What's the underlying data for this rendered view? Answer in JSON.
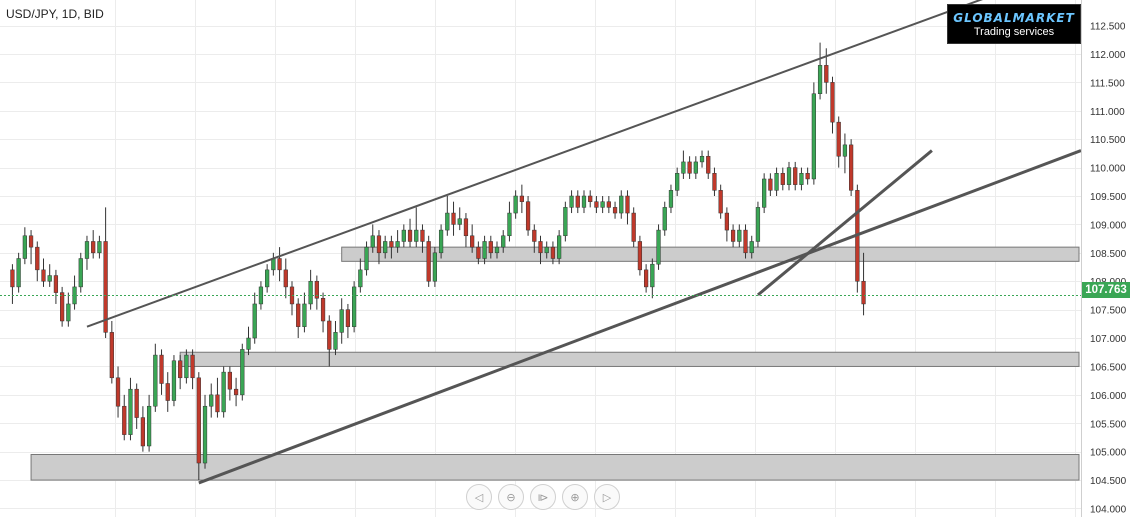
{
  "header": {
    "symbol": "USD/JPY, 1D, BID"
  },
  "logo": {
    "brand": "GLOBALMARKET",
    "tagline": "Trading services"
  },
  "price_label": "107.763",
  "nav": {
    "icons": [
      "scroll-left-icon",
      "zoom-out-icon",
      "reset-icon",
      "zoom-in-icon",
      "scroll-right-icon"
    ],
    "glyphs": [
      "◁",
      "⊖",
      "⧐",
      "⊕",
      "▷"
    ]
  },
  "colors": {
    "up": "#3aa655",
    "down": "#c0392b",
    "grid": "#ececec",
    "zone_fill": "#cccccc",
    "trendline": "#555555",
    "price_line": "#3aa655"
  },
  "chart_data": {
    "type": "candlestick",
    "title": "",
    "y_axis": {
      "ticks": [
        "104.000",
        "104.500",
        "105.000",
        "105.500",
        "106.000",
        "106.500",
        "107.000",
        "107.500",
        "108.000",
        "108.500",
        "109.000",
        "109.500",
        "110.000",
        "110.500",
        "111.000",
        "111.500",
        "112.000",
        "112.500"
      ],
      "min": 103.85,
      "max": 112.95,
      "side": "right"
    },
    "grid": true,
    "last_price": 107.763,
    "candles": [
      [
        108.2,
        107.9,
        108.3,
        107.6
      ],
      [
        107.9,
        108.4,
        108.5,
        107.8
      ],
      [
        108.4,
        108.8,
        108.95,
        108.3
      ],
      [
        108.8,
        108.6,
        108.9,
        108.3
      ],
      [
        108.6,
        108.2,
        108.7,
        108.0
      ],
      [
        108.2,
        108.0,
        108.4,
        107.9
      ],
      [
        108.0,
        108.1,
        108.3,
        107.9
      ],
      [
        108.1,
        107.8,
        108.2,
        107.6
      ],
      [
        107.8,
        107.3,
        107.9,
        107.2
      ],
      [
        107.3,
        107.6,
        107.8,
        107.2
      ],
      [
        107.6,
        107.9,
        108.1,
        107.5
      ],
      [
        107.9,
        108.4,
        108.5,
        107.8
      ],
      [
        108.4,
        108.7,
        108.8,
        108.2
      ],
      [
        108.7,
        108.5,
        108.9,
        108.4
      ],
      [
        108.5,
        108.7,
        108.8,
        108.4
      ],
      [
        108.7,
        107.1,
        109.3,
        107.0
      ],
      [
        107.1,
        106.3,
        107.3,
        106.2
      ],
      [
        106.3,
        105.8,
        106.5,
        105.6
      ],
      [
        105.8,
        105.3,
        106.0,
        105.2
      ],
      [
        105.3,
        106.1,
        106.3,
        105.2
      ],
      [
        106.1,
        105.6,
        106.2,
        105.4
      ],
      [
        105.6,
        105.1,
        105.8,
        105.0
      ],
      [
        105.1,
        105.8,
        106.0,
        105.0
      ],
      [
        105.8,
        106.7,
        106.9,
        105.7
      ],
      [
        106.7,
        106.2,
        106.8,
        106.0
      ],
      [
        106.2,
        105.9,
        106.4,
        105.7
      ],
      [
        105.9,
        106.6,
        106.7,
        105.8
      ],
      [
        106.6,
        106.3,
        106.7,
        106.1
      ],
      [
        106.3,
        106.7,
        106.8,
        106.2
      ],
      [
        106.7,
        106.3,
        106.8,
        106.1
      ],
      [
        106.3,
        104.8,
        106.4,
        104.5
      ],
      [
        104.8,
        105.8,
        106.0,
        104.7
      ],
      [
        105.8,
        106.0,
        106.2,
        105.6
      ],
      [
        106.0,
        105.7,
        106.3,
        105.6
      ],
      [
        105.7,
        106.4,
        106.5,
        105.6
      ],
      [
        106.4,
        106.1,
        106.5,
        105.9
      ],
      [
        106.1,
        106.0,
        106.3,
        105.8
      ],
      [
        106.0,
        106.8,
        106.9,
        105.9
      ],
      [
        106.8,
        107.0,
        107.2,
        106.7
      ],
      [
        107.0,
        107.6,
        107.8,
        106.9
      ],
      [
        107.6,
        107.9,
        108.0,
        107.5
      ],
      [
        107.9,
        108.2,
        108.3,
        107.8
      ],
      [
        108.2,
        108.4,
        108.5,
        108.1
      ],
      [
        108.4,
        108.2,
        108.6,
        108.0
      ],
      [
        108.2,
        107.9,
        108.4,
        107.7
      ],
      [
        107.9,
        107.6,
        108.0,
        107.4
      ],
      [
        107.6,
        107.2,
        107.7,
        107.0
      ],
      [
        107.2,
        107.6,
        107.8,
        107.1
      ],
      [
        107.6,
        108.0,
        108.2,
        107.5
      ],
      [
        108.0,
        107.7,
        108.1,
        107.5
      ],
      [
        107.7,
        107.3,
        107.8,
        107.1
      ],
      [
        107.3,
        106.8,
        107.4,
        106.5
      ],
      [
        106.8,
        107.1,
        107.3,
        106.7
      ],
      [
        107.1,
        107.5,
        107.7,
        106.9
      ],
      [
        107.5,
        107.2,
        107.6,
        107.0
      ],
      [
        107.2,
        107.9,
        108.0,
        107.1
      ],
      [
        107.9,
        108.2,
        108.4,
        107.8
      ],
      [
        108.2,
        108.6,
        108.7,
        108.1
      ],
      [
        108.6,
        108.8,
        109.0,
        108.5
      ],
      [
        108.8,
        108.5,
        108.9,
        108.3
      ],
      [
        108.5,
        108.7,
        108.8,
        108.4
      ],
      [
        108.7,
        108.6,
        108.8,
        108.4
      ],
      [
        108.6,
        108.7,
        108.9,
        108.5
      ],
      [
        108.7,
        108.9,
        109.0,
        108.6
      ],
      [
        108.9,
        108.7,
        109.1,
        108.6
      ],
      [
        108.7,
        108.9,
        109.3,
        108.6
      ],
      [
        108.9,
        108.7,
        109.0,
        108.5
      ],
      [
        108.7,
        108.0,
        108.8,
        107.9
      ],
      [
        108.0,
        108.5,
        108.6,
        107.9
      ],
      [
        108.5,
        108.9,
        109.0,
        108.4
      ],
      [
        108.9,
        109.2,
        109.5,
        108.8
      ],
      [
        109.2,
        109.0,
        109.4,
        108.8
      ],
      [
        109.0,
        109.1,
        109.3,
        108.9
      ],
      [
        109.1,
        108.8,
        109.2,
        108.6
      ],
      [
        108.8,
        108.6,
        109.0,
        108.5
      ],
      [
        108.6,
        108.4,
        108.7,
        108.3
      ],
      [
        108.4,
        108.7,
        108.8,
        108.3
      ],
      [
        108.7,
        108.5,
        108.8,
        108.4
      ],
      [
        108.5,
        108.6,
        108.7,
        108.4
      ],
      [
        108.6,
        108.8,
        108.9,
        108.5
      ],
      [
        108.8,
        109.2,
        109.4,
        108.7
      ],
      [
        109.2,
        109.5,
        109.6,
        109.1
      ],
      [
        109.5,
        109.4,
        109.7,
        109.2
      ],
      [
        109.4,
        108.9,
        109.5,
        108.8
      ],
      [
        108.9,
        108.7,
        109.0,
        108.5
      ],
      [
        108.7,
        108.5,
        108.8,
        108.3
      ],
      [
        108.5,
        108.6,
        108.7,
        108.4
      ],
      [
        108.6,
        108.4,
        108.7,
        108.3
      ],
      [
        108.4,
        108.8,
        108.9,
        108.3
      ],
      [
        108.8,
        109.3,
        109.4,
        108.7
      ],
      [
        109.3,
        109.5,
        109.6,
        109.2
      ],
      [
        109.5,
        109.3,
        109.6,
        109.2
      ],
      [
        109.3,
        109.5,
        109.6,
        109.2
      ],
      [
        109.5,
        109.4,
        109.6,
        109.3
      ],
      [
        109.4,
        109.3,
        109.5,
        109.2
      ],
      [
        109.3,
        109.4,
        109.5,
        109.2
      ],
      [
        109.4,
        109.3,
        109.5,
        109.2
      ],
      [
        109.3,
        109.2,
        109.4,
        109.1
      ],
      [
        109.2,
        109.5,
        109.6,
        109.1
      ],
      [
        109.5,
        109.2,
        109.6,
        109.0
      ],
      [
        109.2,
        108.7,
        109.3,
        108.6
      ],
      [
        108.7,
        108.2,
        108.8,
        108.1
      ],
      [
        108.2,
        107.9,
        108.3,
        107.8
      ],
      [
        107.9,
        108.3,
        108.4,
        107.7
      ],
      [
        108.3,
        108.9,
        109.0,
        108.2
      ],
      [
        108.9,
        109.3,
        109.4,
        108.8
      ],
      [
        109.3,
        109.6,
        109.7,
        109.2
      ],
      [
        109.6,
        109.9,
        110.0,
        109.5
      ],
      [
        109.9,
        110.1,
        110.3,
        109.8
      ],
      [
        110.1,
        109.9,
        110.2,
        109.8
      ],
      [
        109.9,
        110.1,
        110.2,
        109.8
      ],
      [
        110.1,
        110.2,
        110.3,
        110.0
      ],
      [
        110.2,
        109.9,
        110.3,
        109.8
      ],
      [
        109.9,
        109.6,
        110.0,
        109.5
      ],
      [
        109.6,
        109.2,
        109.7,
        109.1
      ],
      [
        109.2,
        108.9,
        109.3,
        108.7
      ],
      [
        108.9,
        108.7,
        109.0,
        108.6
      ],
      [
        108.7,
        108.9,
        109.0,
        108.6
      ],
      [
        108.9,
        108.5,
        109.0,
        108.4
      ],
      [
        108.5,
        108.7,
        108.8,
        108.4
      ],
      [
        108.7,
        109.3,
        109.4,
        108.6
      ],
      [
        109.3,
        109.8,
        109.9,
        109.2
      ],
      [
        109.8,
        109.6,
        109.9,
        109.5
      ],
      [
        109.6,
        109.9,
        110.0,
        109.5
      ],
      [
        109.9,
        109.7,
        110.0,
        109.6
      ],
      [
        109.7,
        110.0,
        110.1,
        109.6
      ],
      [
        110.0,
        109.7,
        110.1,
        109.6
      ],
      [
        109.7,
        109.9,
        110.0,
        109.6
      ],
      [
        109.9,
        109.8,
        110.0,
        109.7
      ],
      [
        109.8,
        111.3,
        111.5,
        109.7
      ],
      [
        111.3,
        111.8,
        112.2,
        111.2
      ],
      [
        111.8,
        111.5,
        112.1,
        111.3
      ],
      [
        111.5,
        110.8,
        111.6,
        110.6
      ],
      [
        110.8,
        110.2,
        110.9,
        110.0
      ],
      [
        110.2,
        110.4,
        110.6,
        109.9
      ],
      [
        110.4,
        109.6,
        110.5,
        109.5
      ],
      [
        109.6,
        108.0,
        109.7,
        107.8
      ],
      [
        108.0,
        107.6,
        108.5,
        107.4
      ]
    ],
    "trendlines": [
      {
        "role": "upper-channel",
        "from": [
          12,
          107.2
        ],
        "to": [
          162,
          113.2
        ]
      },
      {
        "role": "middle-channel",
        "from": [
          30,
          104.45
        ],
        "to": [
          172,
          110.3
        ]
      },
      {
        "role": "lower-channel",
        "from": [
          120,
          107.76
        ],
        "to": [
          148,
          110.3
        ]
      }
    ],
    "zones": [
      {
        "from": 53,
        "to": 172,
        "low": 108.35,
        "high": 108.6
      },
      {
        "from": 27,
        "to": 172,
        "low": 106.5,
        "high": 106.75
      },
      {
        "from": 3,
        "to": 172,
        "low": 104.5,
        "high": 104.95
      }
    ],
    "x_domain": [
      -2,
      172
    ]
  }
}
